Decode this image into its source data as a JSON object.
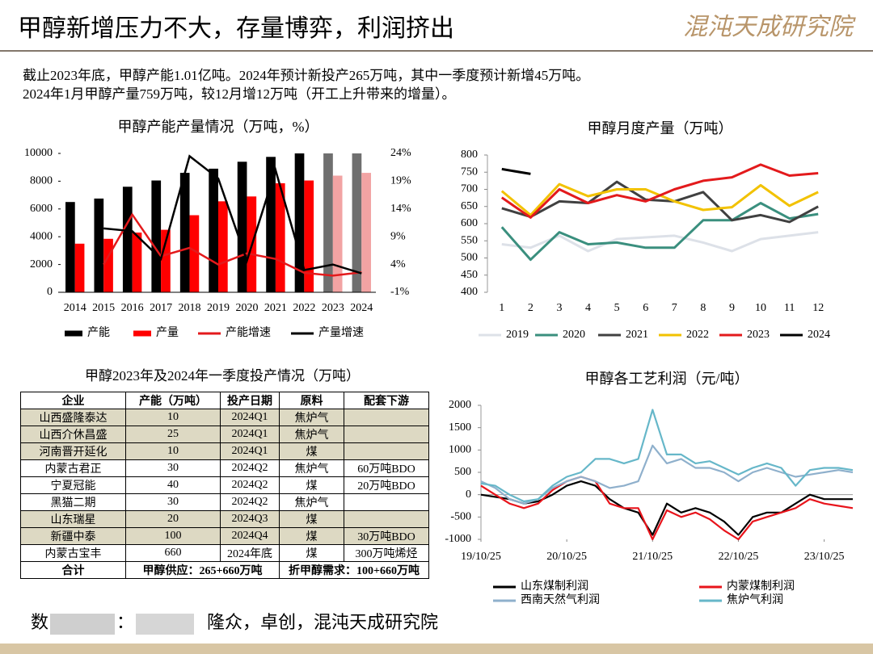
{
  "header": {
    "title": "甲醇新增压力不大，存量博弈，利润挤出",
    "logo": "混沌天成研究院"
  },
  "notes": [
    "截止2023年底，甲醇产能1.01亿吨。2024年预计新投产265万吨，其中一季度预计新增45万吨。",
    "2024年1月甲醇产量759万吨，较12月增12万吨（开工上升带来的增量）。"
  ],
  "chart_data": [
    {
      "type": "bar",
      "title": "甲醇产能产量情况（万吨，%）",
      "categories": [
        "2014",
        "2015",
        "2016",
        "2017",
        "2018",
        "2019",
        "2020",
        "2021",
        "2022",
        "2023",
        "2024"
      ],
      "ylim": [
        0,
        10000
      ],
      "yticks": [
        0,
        2000,
        4000,
        6000,
        8000,
        10000
      ],
      "y2lim": [
        -1,
        24
      ],
      "y2ticks": [
        {
          "value": -1,
          "label": "-1%"
        },
        {
          "value": 4,
          "label": "4%"
        },
        {
          "value": 9,
          "label": "9%"
        },
        {
          "value": 14,
          "label": "14%"
        },
        {
          "value": 19,
          "label": "19%"
        },
        {
          "value": 24,
          "label": "24%"
        }
      ],
      "series": [
        {
          "name": "产能",
          "type": "bar",
          "color": "#000000",
          "colors": [
            "#000000",
            "#000000",
            "#000000",
            "#000000",
            "#000000",
            "#000000",
            "#000000",
            "#000000",
            "#000000",
            "#6f6f6f",
            "#6f6f6f"
          ],
          "values": [
            6500,
            6750,
            7600,
            8050,
            8600,
            8900,
            9400,
            9750,
            10000,
            10100,
            10365
          ]
        },
        {
          "name": "产量",
          "type": "bar",
          "color": "#ff0000",
          "colors": [
            "#ff0000",
            "#ff0000",
            "#ff0000",
            "#ff0000",
            "#ff0000",
            "#ff0000",
            "#ff0000",
            "#ff0000",
            "#ff0000",
            "#f2a3a3",
            "#f2a3a3"
          ],
          "values": [
            3500,
            3850,
            4300,
            4500,
            5550,
            6550,
            6900,
            7850,
            8050,
            8400,
            8600
          ]
        },
        {
          "name": "产能增速",
          "type": "line",
          "axis": "y2",
          "color": "#e31a1c",
          "values": [
            null,
            4,
            13,
            5.5,
            7,
            4,
            6,
            5,
            2.5,
            2,
            2.6
          ]
        },
        {
          "name": "产量增速",
          "type": "line",
          "axis": "y2",
          "color": "#000000",
          "values": [
            null,
            10.5,
            10,
            5,
            23.5,
            19.5,
            4.7,
            21,
            3,
            4,
            2.4
          ]
        }
      ]
    },
    {
      "type": "line",
      "title": "甲醇月度产量（万吨）",
      "categories": [
        1,
        2,
        3,
        4,
        5,
        6,
        7,
        8,
        9,
        10,
        11,
        12
      ],
      "ylim": [
        400,
        800
      ],
      "yticks": [
        400,
        450,
        500,
        550,
        600,
        650,
        700,
        750,
        800
      ],
      "series": [
        {
          "name": "2019",
          "color": "#dde1e8",
          "values": [
            540,
            530,
            565,
            520,
            555,
            560,
            565,
            545,
            520,
            555,
            565,
            575
          ]
        },
        {
          "name": "2020",
          "color": "#3a8f7e",
          "values": [
            590,
            495,
            575,
            540,
            545,
            530,
            530,
            610,
            610,
            660,
            615,
            628
          ]
        },
        {
          "name": "2021",
          "color": "#404040",
          "values": [
            645,
            620,
            665,
            660,
            722,
            670,
            665,
            692,
            610,
            625,
            605,
            650
          ]
        },
        {
          "name": "2022",
          "color": "#f2c200",
          "values": [
            695,
            625,
            715,
            680,
            700,
            700,
            665,
            640,
            648,
            712,
            652,
            692
          ]
        },
        {
          "name": "2023",
          "color": "#e31a1c",
          "values": [
            676,
            618,
            700,
            660,
            683,
            665,
            700,
            725,
            735,
            772,
            740,
            747
          ]
        },
        {
          "name": "2024",
          "color": "#000000",
          "values": [
            759,
            745,
            null,
            null,
            null,
            null,
            null,
            null,
            null,
            null,
            null,
            null
          ]
        }
      ]
    },
    {
      "type": "line",
      "title": "甲醇各工艺利润（元/吨）",
      "x": [
        "19/10/25",
        "19/12/25",
        "20/02/25",
        "20/04/25",
        "20/06/25",
        "20/08/25",
        "20/10/25",
        "20/12/25",
        "21/02/25",
        "21/04/25",
        "21/06/25",
        "21/08/25",
        "21/10/25",
        "21/12/25",
        "22/02/25",
        "22/04/25",
        "22/06/25",
        "22/08/25",
        "22/10/25",
        "22/12/25",
        "23/02/25",
        "23/04/25",
        "23/06/25",
        "23/08/25",
        "23/10/25",
        "23/12/25",
        "24/02/25"
      ],
      "xlim": [
        "19/10/25",
        "24/02/25"
      ],
      "xticks": [
        "19/10/25",
        "20/10/25",
        "21/10/25",
        "22/10/25",
        "23/10/25"
      ],
      "ylim": [
        -1000,
        2000
      ],
      "yticks": [
        -1000,
        -500,
        0,
        500,
        1000,
        1500,
        2000
      ],
      "series": [
        {
          "name": "山东煤制利润",
          "color": "#000000",
          "values": [
            0,
            -50,
            -100,
            -200,
            -150,
            0,
            200,
            300,
            200,
            -100,
            -300,
            -400,
            -900,
            -200,
            -400,
            -300,
            -400,
            -600,
            -900,
            -500,
            -400,
            -400,
            -200,
            0,
            -100,
            -100,
            -100
          ]
        },
        {
          "name": "内蒙煤制利润",
          "color": "#e8141b",
          "values": [
            200,
            0,
            -200,
            -300,
            -200,
            100,
            300,
            400,
            300,
            -200,
            -300,
            -300,
            -1000,
            -350,
            -500,
            -400,
            -550,
            -800,
            -1000,
            -600,
            -500,
            -400,
            -300,
            -100,
            -200,
            -250,
            -300
          ]
        },
        {
          "name": "西南天然气利润",
          "color": "#8fb0cc",
          "values": [
            300,
            150,
            -100,
            -200,
            -100,
            150,
            300,
            400,
            300,
            150,
            200,
            300,
            1100,
            700,
            800,
            600,
            600,
            500,
            300,
            500,
            600,
            500,
            400,
            450,
            500,
            550,
            500
          ]
        },
        {
          "name": "焦炉气利润",
          "color": "#66b7c9",
          "values": [
            250,
            200,
            0,
            -150,
            -100,
            200,
            400,
            500,
            800,
            800,
            700,
            800,
            1900,
            900,
            900,
            700,
            750,
            600,
            450,
            600,
            700,
            600,
            200,
            550,
            600,
            600,
            550
          ]
        }
      ]
    }
  ],
  "table": {
    "title": "甲醇2023年及2024年一季度投产情况（万吨）",
    "columns": [
      "企业",
      "产能（万吨）",
      "投产日期",
      "原料",
      "配套下游"
    ],
    "shading": "#ddd9c3",
    "shaded_rows": [
      0,
      1,
      2,
      6,
      7
    ],
    "rows": [
      [
        "山西盛隆泰达",
        10,
        "2024Q1",
        "焦炉气",
        null
      ],
      [
        "山西介休昌盛",
        25,
        "2024Q1",
        "焦炉气",
        null
      ],
      [
        "河南晋开延化",
        10,
        "2024Q1",
        "煤",
        null
      ],
      [
        "内蒙古君正",
        30,
        "2024Q2",
        "焦炉气",
        "60万吨BDO"
      ],
      [
        "宁夏冠能",
        40,
        "2024Q2",
        "煤",
        "20万吨BDO"
      ],
      [
        "黑猫二期",
        30,
        "2024Q2",
        "焦炉气",
        null
      ],
      [
        "山东瑞星",
        20,
        "2024Q3",
        "煤",
        null
      ],
      [
        "新疆中泰",
        100,
        "2024Q4",
        "煤",
        "30万吨BDO"
      ],
      [
        "内蒙古宝丰",
        660,
        "2024年底",
        "煤",
        "300万吨烯烃"
      ]
    ],
    "total": [
      "合计",
      "甲醇供应：265+660万吨",
      "折甲醇需求：100+660万吨"
    ]
  },
  "source": {
    "first": "数",
    "colon": "：",
    "text": "隆众，卓创，混沌天成研究院"
  }
}
